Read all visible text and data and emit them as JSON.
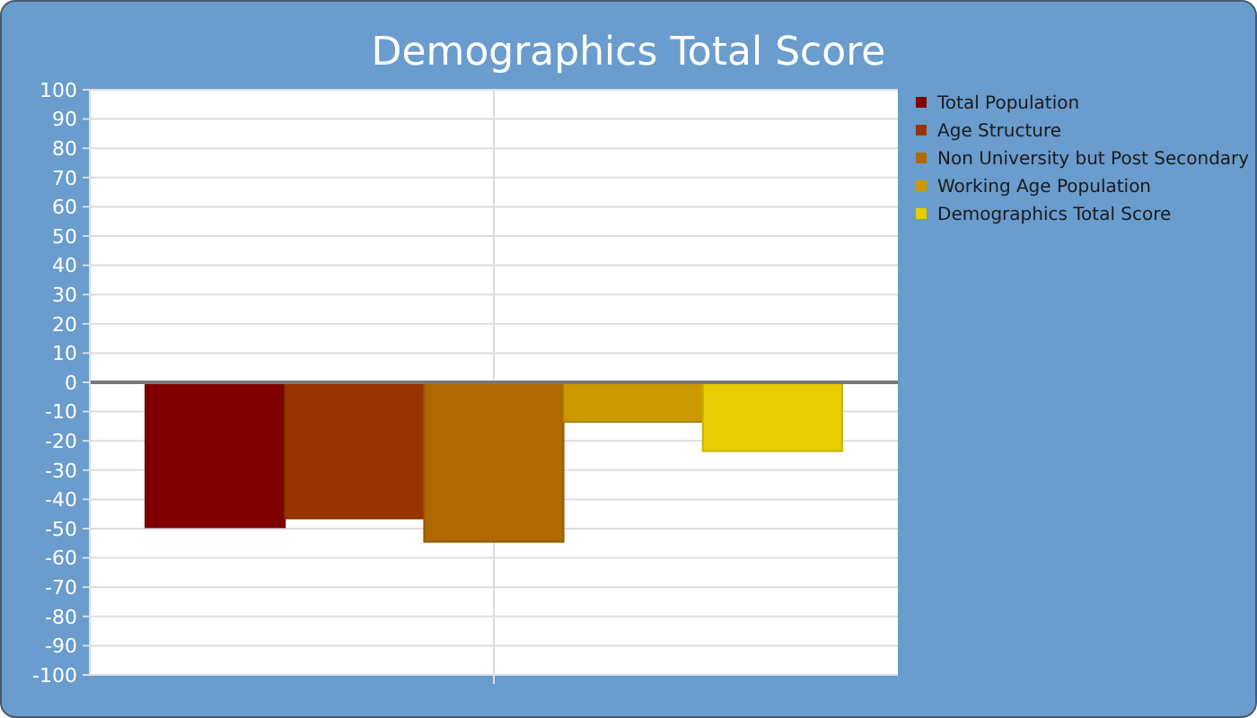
{
  "chart_data": {
    "type": "bar",
    "title": "Demographics Total Score",
    "categories": [
      null
    ],
    "series": [
      {
        "name": "Total Population",
        "color": "#800000",
        "values": [
          -49.5
        ]
      },
      {
        "name": "Age Structure",
        "color": "#993300",
        "values": [
          -46.5
        ]
      },
      {
        "name": "Non University but Post Secondary",
        "color": "#b06800",
        "values": [
          -54.5
        ]
      },
      {
        "name": "Working Age Population",
        "color": "#cc9900",
        "values": [
          -13.5
        ]
      },
      {
        "name": "Demographics Total Score",
        "color": "#e6cc00",
        "values": [
          -23.5
        ]
      }
    ],
    "ylim": [
      -100,
      100
    ],
    "yticks": [
      -100,
      -90,
      -80,
      -70,
      -60,
      -50,
      -40,
      -30,
      -20,
      -10,
      0,
      10,
      20,
      30,
      40,
      50,
      60,
      70,
      80,
      90,
      100
    ],
    "grid": true,
    "legend": "right"
  }
}
